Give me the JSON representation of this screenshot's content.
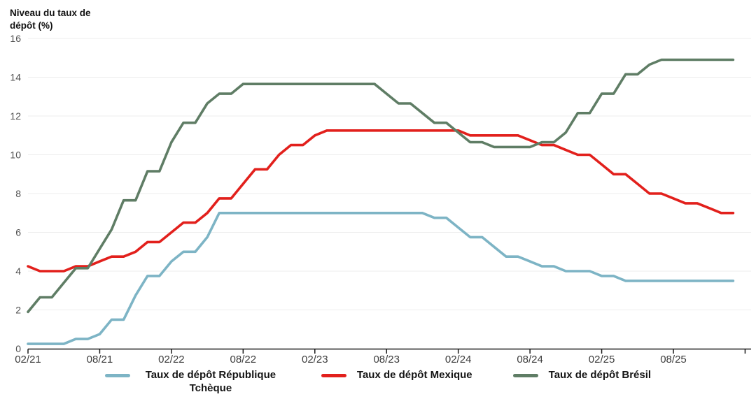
{
  "chart_data": {
    "type": "line",
    "title": "Niveau du taux de dépôt (%)",
    "ylabel": "Niveau du taux de dépôt (%)",
    "xlabel": "",
    "ylim": [
      0,
      16
    ],
    "y_ticks": [
      0,
      2,
      4,
      6,
      8,
      10,
      12,
      14,
      16
    ],
    "grid": "horizontal",
    "legend_position": "bottom",
    "x_tick_labels": [
      "02/21",
      "08/21",
      "02/22",
      "08/22",
      "02/23",
      "08/23",
      "02/24",
      "08/24",
      "02/25",
      "08/25"
    ],
    "x_tick_every_months": 6,
    "months": [
      "02/21",
      "03/21",
      "04/21",
      "05/21",
      "06/21",
      "07/21",
      "08/21",
      "09/21",
      "10/21",
      "11/21",
      "12/21",
      "01/22",
      "02/22",
      "03/22",
      "04/22",
      "05/22",
      "06/22",
      "07/22",
      "08/22",
      "09/22",
      "10/22",
      "11/22",
      "12/22",
      "01/23",
      "02/23",
      "03/23",
      "04/23",
      "05/23",
      "06/23",
      "07/23",
      "08/23",
      "09/23",
      "10/23",
      "11/23",
      "12/23",
      "01/24",
      "02/24",
      "03/24",
      "04/24",
      "05/24",
      "06/24",
      "07/24",
      "08/24",
      "09/24",
      "10/24",
      "11/24",
      "12/24",
      "01/25",
      "02/25",
      "03/25",
      "04/25",
      "05/25",
      "06/25",
      "07/25",
      "08/25",
      "09/25",
      "10/25",
      "11/25",
      "12/25",
      "01/26"
    ],
    "series": [
      {
        "name": "Taux de dépôt République Tchèque",
        "color": "#7db4c5",
        "values": [
          0.25,
          0.25,
          0.25,
          0.25,
          0.5,
          0.5,
          0.75,
          1.5,
          1.5,
          2.75,
          3.75,
          3.75,
          4.5,
          5,
          5,
          5.75,
          7,
          7,
          7,
          7,
          7,
          7,
          7,
          7,
          7,
          7,
          7,
          7,
          7,
          7,
          7,
          7,
          7,
          7,
          6.75,
          6.75,
          6.25,
          5.75,
          5.75,
          5.25,
          4.75,
          4.75,
          4.5,
          4.25,
          4.25,
          4,
          4,
          4,
          3.75,
          3.75,
          3.5,
          3.5,
          3.5,
          3.5,
          3.5,
          3.5,
          3.5,
          3.5,
          3.5,
          3.5
        ]
      },
      {
        "name": "Taux de dépôt Mexique",
        "color": "#e2201c",
        "values": [
          4.25,
          4,
          4,
          4,
          4.25,
          4.25,
          4.5,
          4.75,
          4.75,
          5,
          5.5,
          5.5,
          6,
          6.5,
          6.5,
          7,
          7.75,
          7.75,
          8.5,
          9.25,
          9.25,
          10,
          10.5,
          10.5,
          11,
          11.25,
          11.25,
          11.25,
          11.25,
          11.25,
          11.25,
          11.25,
          11.25,
          11.25,
          11.25,
          11.25,
          11.25,
          11,
          11,
          11,
          11,
          11,
          10.75,
          10.5,
          10.5,
          10.25,
          10,
          10,
          9.5,
          9,
          9,
          8.5,
          8,
          8,
          7.75,
          7.5,
          7.5,
          7.25,
          7,
          7
        ]
      },
      {
        "name": "Taux de dépôt Brésil",
        "color": "#5f7d65",
        "values": [
          1.9,
          2.65,
          2.65,
          3.4,
          4.15,
          4.15,
          5.15,
          6.15,
          7.65,
          7.65,
          9.15,
          9.15,
          10.65,
          11.65,
          11.65,
          12.65,
          13.15,
          13.15,
          13.65,
          13.65,
          13.65,
          13.65,
          13.65,
          13.65,
          13.65,
          13.65,
          13.65,
          13.65,
          13.65,
          13.65,
          13.15,
          12.65,
          12.65,
          12.15,
          11.65,
          11.65,
          11.15,
          10.65,
          10.65,
          10.4,
          10.4,
          10.4,
          10.4,
          10.65,
          10.65,
          11.15,
          12.15,
          12.15,
          13.15,
          13.15,
          14.15,
          14.15,
          14.65,
          14.9,
          14.9,
          14.9,
          14.9,
          14.9,
          14.9,
          14.9
        ]
      }
    ]
  },
  "legend": {
    "items": [
      {
        "swatch": "czech-line-swatch"
      },
      {
        "swatch": "mexico-line-swatch"
      },
      {
        "swatch": "brazil-line-swatch"
      }
    ]
  }
}
